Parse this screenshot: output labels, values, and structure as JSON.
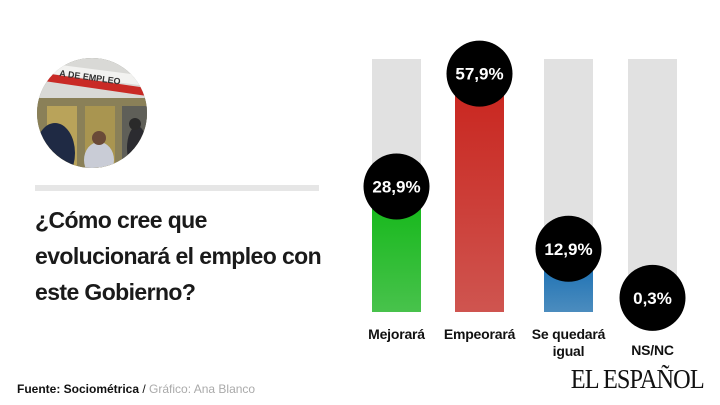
{
  "title": "¿Cómo cree que evolucionará el empleo con este Gobierno?",
  "photo": {
    "sign_text": "A DE EMPLEO"
  },
  "source": {
    "label": "Fuente: Sociométrica",
    "separator": " / ",
    "credit": "Gráfico: Ana Blanco"
  },
  "logo": "EL ESPAÑOL",
  "colors": {
    "background_bar": "#e1e1e1",
    "label_circle": "#000000"
  },
  "chart_data": {
    "type": "bar",
    "title": "¿Cómo cree que evolucionará el empleo con este Gobierno?",
    "categories": [
      "Mejorará",
      "Empeorará",
      "Se quedará igual",
      "NS/NC"
    ],
    "values": [
      28.9,
      57.9,
      12.9,
      0.3
    ],
    "value_labels": [
      "28,9%",
      "57,9%",
      "12,9%",
      "0,3%"
    ],
    "unit": "%",
    "colors": [
      "#15b81a",
      "#c9261f",
      "#1a70b3",
      "#e1e1e1"
    ],
    "ylim": [
      0,
      65
    ],
    "grid": false,
    "legend": "none"
  }
}
